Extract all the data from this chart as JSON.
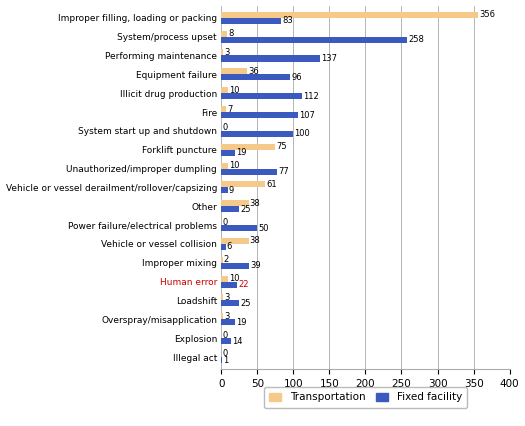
{
  "categories": [
    "Improper filling, loading or packing",
    "System/process upset",
    "Performing maintenance",
    "Equipment failure",
    "Illicit drug production",
    "Fire",
    "System start up and shutdown",
    "Forklift puncture",
    "Unauthorized/improper dumpling",
    "Vehicle or vessel derailment/rollover/capsizing",
    "Other",
    "Power failure/electrical problems",
    "Vehicle or vessel collision",
    "Improper mixing",
    "Human error",
    "Loadshift",
    "Overspray/misapplication",
    "Explosion",
    "Illegal act"
  ],
  "transportation": [
    356,
    8,
    3,
    36,
    10,
    7,
    0,
    75,
    10,
    61,
    38,
    0,
    38,
    2,
    10,
    3,
    3,
    0,
    0
  ],
  "fixed_facility": [
    83,
    258,
    137,
    96,
    112,
    107,
    100,
    19,
    77,
    9,
    25,
    50,
    6,
    39,
    22,
    25,
    19,
    14,
    1
  ],
  "transport_color": "#f5c98a",
  "fixed_color": "#3b5abf",
  "human_error_color": "#cc0000",
  "xlim": [
    0,
    400
  ],
  "xticks": [
    0,
    50,
    100,
    150,
    200,
    250,
    300,
    350,
    400
  ],
  "bar_height": 0.32,
  "figsize": [
    5.25,
    4.26
  ],
  "dpi": 100,
  "label_fontsize": 6.0,
  "tick_fontsize": 6.5,
  "xtick_fontsize": 7.5
}
